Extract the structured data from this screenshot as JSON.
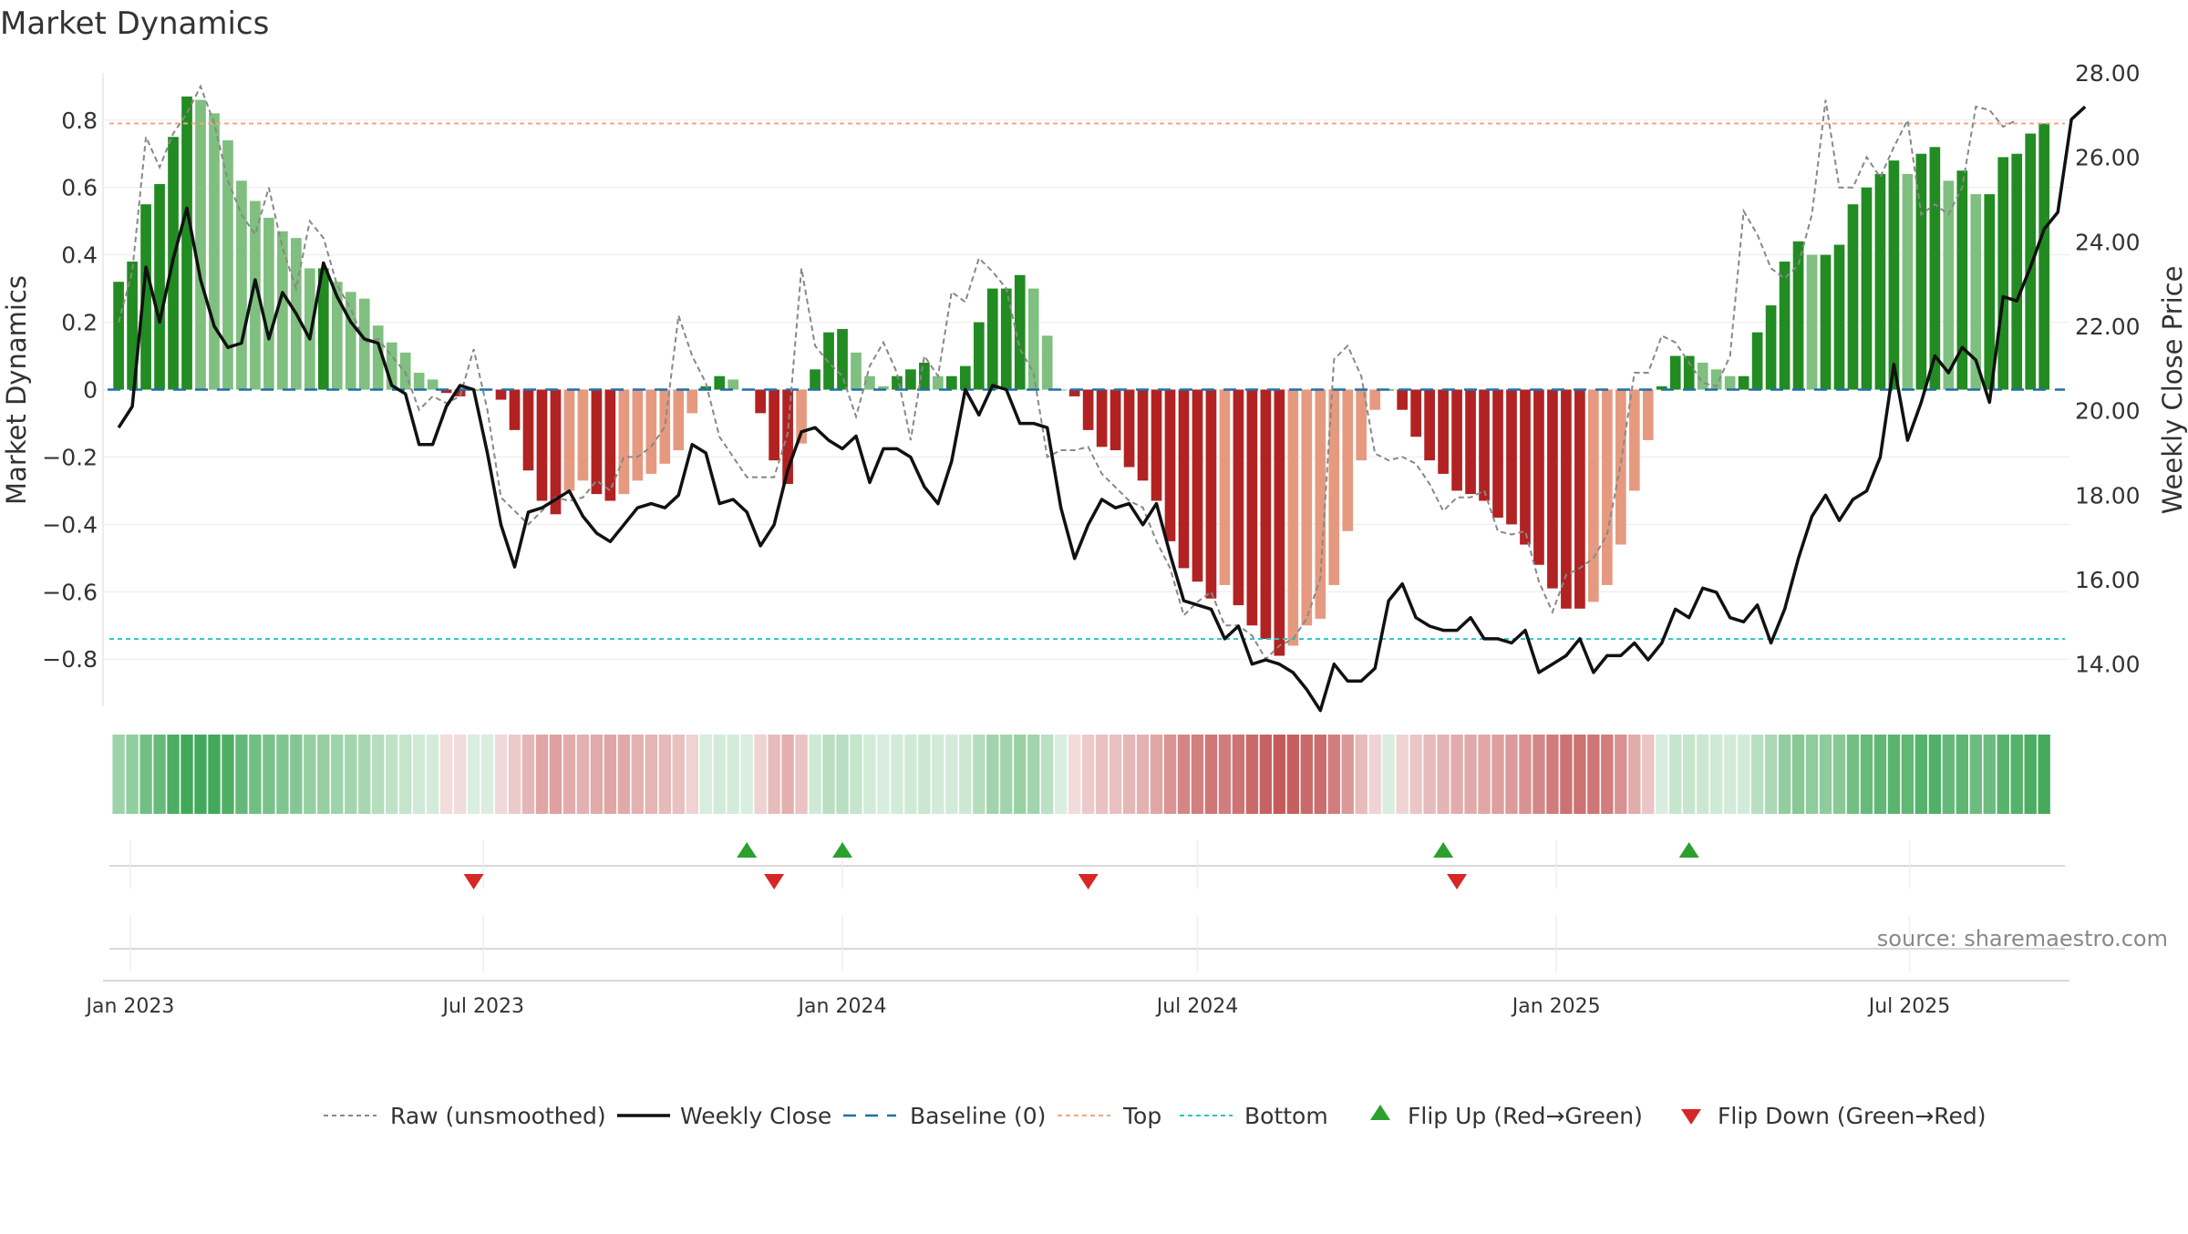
{
  "title": "Market Dynamics",
  "source": "source: sharemaestro.com",
  "axes": {
    "left_label": "Market Dynamics",
    "right_label": "Weekly Close Price",
    "left_ticks": [
      "0.8",
      "0.6",
      "0.4",
      "0.2",
      "0",
      "−0.2",
      "−0.4",
      "−0.6",
      "−0.8"
    ],
    "right_ticks": [
      "28.00",
      "26.00",
      "24.00",
      "22.00",
      "20.00",
      "18.00",
      "16.00",
      "14.00"
    ],
    "x_ticks": [
      "Jan 2023",
      "Jul 2023",
      "Jan 2024",
      "Jul 2024",
      "Jan 2025",
      "Jul 2025"
    ]
  },
  "legend": [
    {
      "key": "raw",
      "label": "Raw (unsmoothed)"
    },
    {
      "key": "close",
      "label": "Weekly Close"
    },
    {
      "key": "baseline",
      "label": "Baseline (0)"
    },
    {
      "key": "top",
      "label": "Top"
    },
    {
      "key": "bottom",
      "label": "Bottom"
    },
    {
      "key": "flip_up",
      "label": "Flip Up (Red→Green)"
    },
    {
      "key": "flip_down",
      "label": "Flip Down (Green→Red)"
    }
  ],
  "colors": {
    "strong_green": "#228b22",
    "light_green": "#7fbf7f",
    "strong_red": "#b22222",
    "light_red": "#e59a80",
    "top_line": "#f4a582",
    "bottom_line": "#2ec4c4",
    "baseline": "#1f6fa8",
    "close_line": "#111111",
    "raw_line": "#888888",
    "flip_up": "#2ca02c",
    "flip_down": "#d62728"
  },
  "chart_data": {
    "type": "bar",
    "x_start": "2022-12-26",
    "x_step_days": 7,
    "x_range": [
      "2022-12-18",
      "2025-09-21"
    ],
    "left_ylim": [
      -0.94,
      0.94
    ],
    "right_ylim": [
      13.0,
      28.0
    ],
    "top_threshold": 0.79,
    "bottom_threshold": -0.74,
    "series": [
      {
        "name": "Market Dynamics",
        "values": [
          0.32,
          0.38,
          0.55,
          0.61,
          0.75,
          0.87,
          0.86,
          0.82,
          0.74,
          0.62,
          0.56,
          0.51,
          0.47,
          0.45,
          0.36,
          0.36,
          0.32,
          0.29,
          0.27,
          0.19,
          0.14,
          0.11,
          0.05,
          0.03,
          -0.01,
          -0.02,
          0,
          0,
          -0.03,
          -0.12,
          -0.24,
          -0.33,
          -0.37,
          -0.3,
          -0.27,
          -0.31,
          -0.33,
          -0.31,
          -0.27,
          -0.25,
          -0.22,
          -0.18,
          -0.07,
          0.01,
          0.04,
          0.03,
          0,
          -0.07,
          -0.21,
          -0.28,
          -0.16,
          0.06,
          0.17,
          0.18,
          0.11,
          0.04,
          0.01,
          0.04,
          0.06,
          0.08,
          0.04,
          0.04,
          0.07,
          0.2,
          0.3,
          0.3,
          0.34,
          0.3,
          0.16,
          0,
          -0.02,
          -0.12,
          -0.17,
          -0.18,
          -0.23,
          -0.27,
          -0.33,
          -0.45,
          -0.53,
          -0.57,
          -0.62,
          -0.58,
          -0.64,
          -0.7,
          -0.74,
          -0.79,
          -0.76,
          -0.7,
          -0.68,
          -0.58,
          -0.42,
          -0.21,
          -0.06,
          0,
          -0.06,
          -0.14,
          -0.21,
          -0.25,
          -0.3,
          -0.31,
          -0.33,
          -0.38,
          -0.4,
          -0.46,
          -0.52,
          -0.59,
          -0.65,
          -0.65,
          -0.63,
          -0.58,
          -0.46,
          -0.3,
          -0.15,
          0.01,
          0.1,
          0.1,
          0.08,
          0.06,
          0.04,
          0.04,
          0.17,
          0.25,
          0.38,
          0.44,
          0.4,
          0.4,
          0.43,
          0.55,
          0.6,
          0.64,
          0.68,
          0.64,
          0.7,
          0.72,
          0.62,
          0.65,
          0.58,
          0.58,
          0.69,
          0.7,
          0.76,
          0.79
        ]
      },
      {
        "name": "Raw (unsmoothed)",
        "values": [
          0.2,
          0.35,
          0.75,
          0.66,
          0.76,
          0.82,
          0.9,
          0.79,
          0.62,
          0.52,
          0.46,
          0.6,
          0.42,
          0.3,
          0.5,
          0.45,
          0.31,
          0.24,
          0.14,
          0.15,
          0.1,
          0.05,
          -0.06,
          -0.02,
          -0.04,
          -0.02,
          0.12,
          -0.06,
          -0.32,
          -0.36,
          -0.4,
          -0.36,
          -0.32,
          -0.33,
          -0.32,
          -0.27,
          -0.3,
          -0.2,
          -0.2,
          -0.17,
          -0.11,
          0.22,
          0.1,
          0.02,
          -0.14,
          -0.2,
          -0.26,
          -0.26,
          -0.26,
          -0.13,
          0.36,
          0.13,
          0.08,
          0.04,
          -0.08,
          0.07,
          0.14,
          0.05,
          -0.15,
          0.1,
          0.04,
          0.29,
          0.26,
          0.39,
          0.35,
          0.3,
          0.12,
          0.05,
          -0.2,
          -0.18,
          -0.18,
          -0.17,
          -0.25,
          -0.29,
          -0.33,
          -0.35,
          -0.45,
          -0.53,
          -0.67,
          -0.63,
          -0.6,
          -0.7,
          -0.7,
          -0.73,
          -0.8,
          -0.76,
          -0.74,
          -0.68,
          -0.56,
          0.09,
          0.13,
          0.04,
          -0.19,
          -0.21,
          -0.2,
          -0.22,
          -0.28,
          -0.36,
          -0.32,
          -0.32,
          -0.3,
          -0.42,
          -0.43,
          -0.42,
          -0.57,
          -0.66,
          -0.55,
          -0.53,
          -0.5,
          -0.43,
          -0.22,
          0.05,
          0.05,
          0.16,
          0.14,
          0.08,
          0.02,
          0.01,
          0.1,
          0.53,
          0.46,
          0.36,
          0.33,
          0.37,
          0.52,
          0.86,
          0.6,
          0.6,
          0.69,
          0.63,
          0.72,
          0.8,
          0.52,
          0.55,
          0.52,
          0.6,
          0.84,
          0.83,
          0.78,
          0.8
        ]
      },
      {
        "name": "Weekly Close",
        "values": [
          19.6,
          20.1,
          23.4,
          22.1,
          23.6,
          24.8,
          23.1,
          22.0,
          21.5,
          21.6,
          23.1,
          21.7,
          22.8,
          22.3,
          21.7,
          23.5,
          22.7,
          22.1,
          21.7,
          21.6,
          20.6,
          20.4,
          19.2,
          19.2,
          20.1,
          20.6,
          20.5,
          19.0,
          17.3,
          16.3,
          17.6,
          17.7,
          17.9,
          18.1,
          17.5,
          17.1,
          16.9,
          17.3,
          17.7,
          17.8,
          17.7,
          18.0,
          19.2,
          19.0,
          17.8,
          17.9,
          17.6,
          16.8,
          17.3,
          18.6,
          19.5,
          19.6,
          19.3,
          19.1,
          19.4,
          18.3,
          19.1,
          19.1,
          18.9,
          18.2,
          17.8,
          18.8,
          20.5,
          19.9,
          20.6,
          20.5,
          19.7,
          19.7,
          19.6,
          17.7,
          16.5,
          17.3,
          17.9,
          17.7,
          17.8,
          17.3,
          17.8,
          16.6,
          15.5,
          15.4,
          15.3,
          14.6,
          14.9,
          14.0,
          14.1,
          14.0,
          13.8,
          13.4,
          12.9,
          14.0,
          13.6,
          13.6,
          13.9,
          15.5,
          15.9,
          15.1,
          14.9,
          14.8,
          14.8,
          15.1,
          14.6,
          14.6,
          14.5,
          14.8,
          13.8,
          14.0,
          14.2,
          14.6,
          13.8,
          14.2,
          14.2,
          14.5,
          14.1,
          14.5,
          15.3,
          15.1,
          15.8,
          15.7,
          15.1,
          15.0,
          15.4,
          14.5,
          15.3,
          16.5,
          17.5,
          18.0,
          17.4,
          17.9,
          18.1,
          18.9,
          21.1,
          19.3,
          20.2,
          21.3,
          20.9,
          21.5,
          21.2,
          20.2,
          22.7,
          22.6,
          23.4,
          24.3,
          24.7,
          26.9,
          27.2
        ]
      }
    ],
    "flip_up_dates": [
      "2023-11-13",
      "2024-01-01",
      "2024-11-04",
      "2025-03-10"
    ],
    "flip_down_dates": [
      "2023-06-26",
      "2023-11-27",
      "2024-05-06",
      "2024-11-11"
    ]
  }
}
